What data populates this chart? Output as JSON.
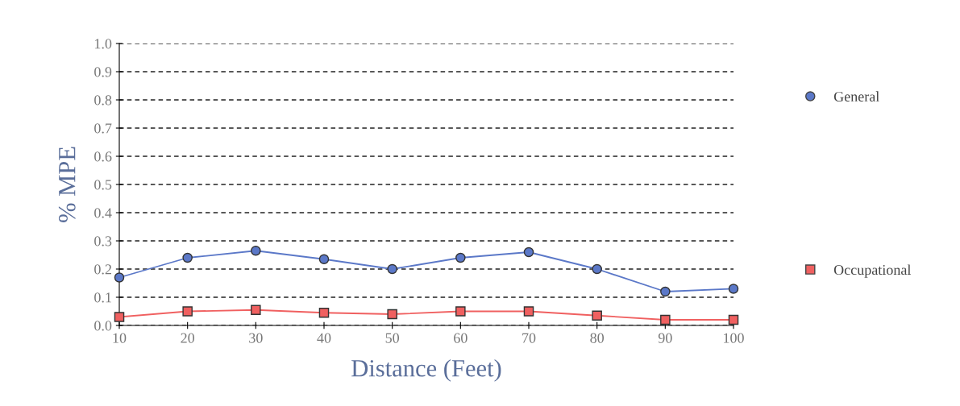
{
  "chart_data": {
    "type": "line",
    "xlabel": "Distance (Feet)",
    "ylabel": "% MPE",
    "x": [
      10,
      20,
      30,
      40,
      50,
      60,
      70,
      80,
      90,
      100
    ],
    "series": [
      {
        "name": "General",
        "color": "#5b78c8",
        "marker": "circle",
        "values": [
          0.17,
          0.24,
          0.265,
          0.235,
          0.2,
          0.24,
          0.26,
          0.2,
          0.12,
          0.13
        ]
      },
      {
        "name": "Occupational",
        "color": "#f06060",
        "marker": "square",
        "values": [
          0.03,
          0.05,
          0.055,
          0.045,
          0.04,
          0.05,
          0.05,
          0.035,
          0.02,
          0.02
        ]
      }
    ],
    "xlim": [
      10,
      100
    ],
    "xticks": [
      10,
      20,
      30,
      40,
      50,
      60,
      70,
      80,
      90,
      100
    ],
    "ylim": [
      0,
      1
    ],
    "yticks": [
      {
        "value": 0,
        "label": "0.0"
      },
      0.1,
      0.2,
      0.3,
      0.4,
      0.5,
      0.6,
      0.7,
      0.8,
      0.9,
      {
        "value": 1,
        "label": "1.0"
      }
    ],
    "grid": "y",
    "legend": "right",
    "line_style": "solid"
  }
}
